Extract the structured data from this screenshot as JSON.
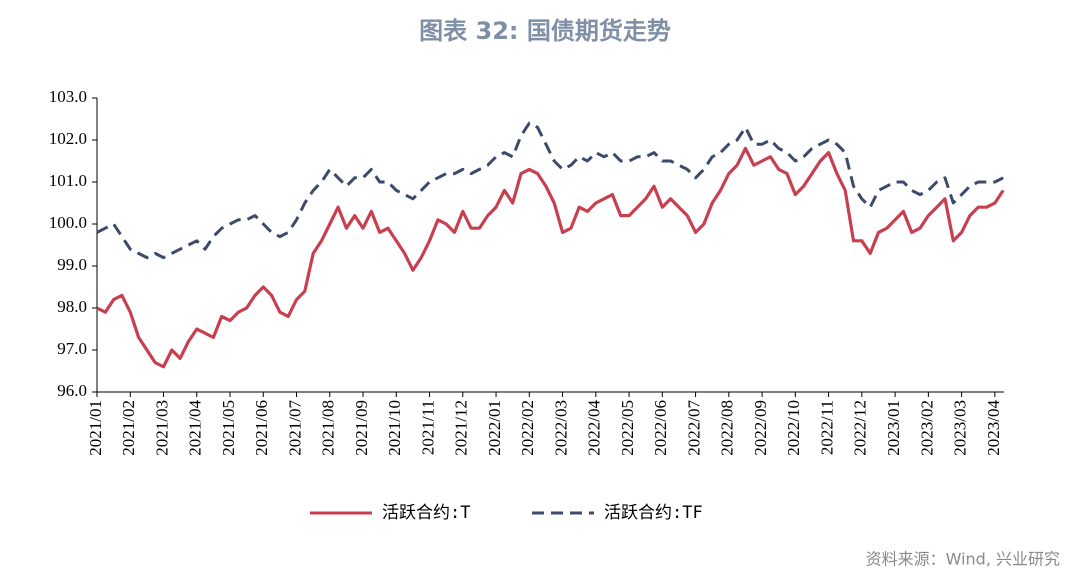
{
  "chart_data": {
    "type": "line",
    "title": "图表 32: 国债期货走势",
    "source": "资料来源：Wind, 兴业研究",
    "categories": [
      "2021/01",
      null,
      null,
      null,
      "2021/02",
      null,
      null,
      null,
      "2021/03",
      null,
      null,
      null,
      "2021/04",
      null,
      null,
      null,
      "2021/05",
      null,
      null,
      null,
      "2021/06",
      null,
      null,
      null,
      "2021/07",
      null,
      null,
      null,
      "2021/08",
      null,
      null,
      null,
      "2021/09",
      null,
      null,
      null,
      "2021/10",
      null,
      null,
      null,
      "2021/11",
      null,
      null,
      null,
      "2021/12",
      null,
      null,
      null,
      "2022/01",
      null,
      null,
      null,
      "2022/02",
      null,
      null,
      null,
      "2022/03",
      null,
      null,
      null,
      "2022/04",
      null,
      null,
      null,
      "2022/05",
      null,
      null,
      null,
      "2022/06",
      null,
      null,
      null,
      "2022/07",
      null,
      null,
      null,
      "2022/08",
      null,
      null,
      null,
      "2022/09",
      null,
      null,
      null,
      "2022/10",
      null,
      null,
      null,
      "2022/11",
      null,
      null,
      null,
      "2022/12",
      null,
      null,
      null,
      "2023/01",
      null,
      null,
      null,
      "2023/02",
      null,
      null,
      null,
      "2023/03",
      null,
      null,
      null,
      "2023/04",
      null
    ],
    "series": [
      {
        "name": "活跃合约:T",
        "color": "#c8404f",
        "dash": false,
        "values": [
          98.0,
          97.9,
          98.2,
          98.3,
          97.9,
          97.3,
          97.0,
          96.7,
          96.6,
          97.0,
          96.8,
          97.2,
          97.5,
          97.4,
          97.3,
          97.8,
          97.7,
          97.9,
          98.0,
          98.3,
          98.5,
          98.3,
          97.9,
          97.8,
          98.2,
          98.4,
          99.3,
          99.6,
          100.0,
          100.4,
          99.9,
          100.2,
          99.9,
          100.3,
          99.8,
          99.9,
          99.6,
          99.3,
          98.9,
          99.2,
          99.6,
          100.1,
          100.0,
          99.8,
          100.3,
          99.9,
          99.9,
          100.2,
          100.4,
          100.8,
          100.5,
          101.2,
          101.3,
          101.2,
          100.9,
          100.5,
          99.8,
          99.9,
          100.4,
          100.3,
          100.5,
          100.6,
          100.7,
          100.2,
          100.2,
          100.4,
          100.6,
          100.9,
          100.4,
          100.6,
          100.4,
          100.2,
          99.8,
          100.0,
          100.5,
          100.8,
          101.2,
          101.4,
          101.8,
          101.4,
          101.5,
          101.6,
          101.3,
          101.2,
          100.7,
          100.9,
          101.2,
          101.5,
          101.7,
          101.2,
          100.8,
          99.6,
          99.6,
          99.3,
          99.8,
          99.9,
          100.1,
          100.3,
          99.8,
          99.9,
          100.2,
          100.4,
          100.6,
          99.6,
          99.8,
          100.2,
          100.4,
          100.4,
          100.5,
          100.8
        ]
      },
      {
        "name": "活跃合约:TF",
        "color": "#3d4a6b",
        "dash": true,
        "values": [
          99.8,
          99.9,
          100.0,
          99.7,
          99.4,
          99.3,
          99.2,
          99.3,
          99.2,
          99.3,
          99.4,
          99.5,
          99.6,
          99.4,
          99.7,
          99.9,
          100.0,
          100.1,
          100.1,
          100.2,
          100.0,
          99.8,
          99.7,
          99.8,
          100.1,
          100.5,
          100.8,
          101.0,
          101.3,
          101.1,
          100.9,
          101.1,
          101.1,
          101.3,
          101.0,
          101.0,
          100.8,
          100.7,
          100.6,
          100.8,
          101.0,
          101.1,
          101.2,
          101.2,
          101.3,
          101.2,
          101.3,
          101.4,
          101.6,
          101.7,
          101.6,
          102.1,
          102.4,
          102.3,
          101.9,
          101.5,
          101.3,
          101.4,
          101.6,
          101.5,
          101.7,
          101.6,
          101.7,
          101.5,
          101.5,
          101.6,
          101.6,
          101.7,
          101.5,
          101.5,
          101.4,
          101.3,
          101.1,
          101.3,
          101.6,
          101.7,
          101.9,
          102.0,
          102.3,
          101.9,
          101.9,
          102.0,
          101.8,
          101.7,
          101.5,
          101.6,
          101.8,
          101.9,
          102.0,
          101.9,
          101.7,
          100.9,
          100.6,
          100.4,
          100.8,
          100.9,
          101.0,
          101.0,
          100.8,
          100.7,
          100.8,
          101.0,
          101.1,
          100.5,
          100.7,
          100.9,
          101.0,
          101.0,
          101.0,
          101.1
        ]
      }
    ],
    "ylim": [
      96,
      103
    ],
    "yticks": [
      {
        "value": 96,
        "label": "96.0"
      },
      {
        "value": 97,
        "label": "97.0"
      },
      {
        "value": 98,
        "label": "98.0"
      },
      {
        "value": 99,
        "label": "99.0"
      },
      {
        "value": 100,
        "label": "100.0"
      },
      {
        "value": 101,
        "label": "101.0"
      },
      {
        "value": 102,
        "label": "102.0"
      },
      {
        "value": 103,
        "label": "103.0"
      }
    ],
    "grid": false
  }
}
